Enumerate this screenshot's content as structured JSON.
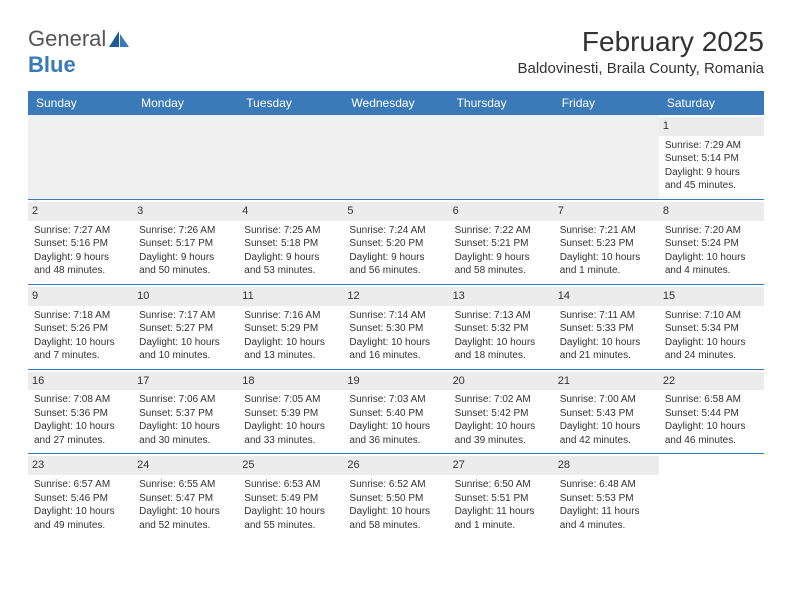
{
  "logo": {
    "text1": "General",
    "text2": "Blue",
    "icon_color": "#3b7ab8"
  },
  "title": {
    "month": "February 2025",
    "location": "Baldovinesti, Braila County, Romania"
  },
  "colors": {
    "brand": "#3b7ab8",
    "header_text": "#ffffff",
    "daybar_bg": "#ececec",
    "empty_bg": "#f0f0f0",
    "body_text": "#333333",
    "background": "#ffffff"
  },
  "typography": {
    "month_fontsize_pt": 21,
    "location_fontsize_pt": 11,
    "dow_fontsize_pt": 9,
    "cell_fontsize_pt": 7.5
  },
  "days_of_week": [
    "Sunday",
    "Monday",
    "Tuesday",
    "Wednesday",
    "Thursday",
    "Friday",
    "Saturday"
  ],
  "weeks": [
    [
      null,
      null,
      null,
      null,
      null,
      null,
      {
        "n": "1",
        "sunrise": "Sunrise: 7:29 AM",
        "sunset": "Sunset: 5:14 PM",
        "daylight1": "Daylight: 9 hours",
        "daylight2": "and 45 minutes."
      }
    ],
    [
      {
        "n": "2",
        "sunrise": "Sunrise: 7:27 AM",
        "sunset": "Sunset: 5:16 PM",
        "daylight1": "Daylight: 9 hours",
        "daylight2": "and 48 minutes."
      },
      {
        "n": "3",
        "sunrise": "Sunrise: 7:26 AM",
        "sunset": "Sunset: 5:17 PM",
        "daylight1": "Daylight: 9 hours",
        "daylight2": "and 50 minutes."
      },
      {
        "n": "4",
        "sunrise": "Sunrise: 7:25 AM",
        "sunset": "Sunset: 5:18 PM",
        "daylight1": "Daylight: 9 hours",
        "daylight2": "and 53 minutes."
      },
      {
        "n": "5",
        "sunrise": "Sunrise: 7:24 AM",
        "sunset": "Sunset: 5:20 PM",
        "daylight1": "Daylight: 9 hours",
        "daylight2": "and 56 minutes."
      },
      {
        "n": "6",
        "sunrise": "Sunrise: 7:22 AM",
        "sunset": "Sunset: 5:21 PM",
        "daylight1": "Daylight: 9 hours",
        "daylight2": "and 58 minutes."
      },
      {
        "n": "7",
        "sunrise": "Sunrise: 7:21 AM",
        "sunset": "Sunset: 5:23 PM",
        "daylight1": "Daylight: 10 hours",
        "daylight2": "and 1 minute."
      },
      {
        "n": "8",
        "sunrise": "Sunrise: 7:20 AM",
        "sunset": "Sunset: 5:24 PM",
        "daylight1": "Daylight: 10 hours",
        "daylight2": "and 4 minutes."
      }
    ],
    [
      {
        "n": "9",
        "sunrise": "Sunrise: 7:18 AM",
        "sunset": "Sunset: 5:26 PM",
        "daylight1": "Daylight: 10 hours",
        "daylight2": "and 7 minutes."
      },
      {
        "n": "10",
        "sunrise": "Sunrise: 7:17 AM",
        "sunset": "Sunset: 5:27 PM",
        "daylight1": "Daylight: 10 hours",
        "daylight2": "and 10 minutes."
      },
      {
        "n": "11",
        "sunrise": "Sunrise: 7:16 AM",
        "sunset": "Sunset: 5:29 PM",
        "daylight1": "Daylight: 10 hours",
        "daylight2": "and 13 minutes."
      },
      {
        "n": "12",
        "sunrise": "Sunrise: 7:14 AM",
        "sunset": "Sunset: 5:30 PM",
        "daylight1": "Daylight: 10 hours",
        "daylight2": "and 16 minutes."
      },
      {
        "n": "13",
        "sunrise": "Sunrise: 7:13 AM",
        "sunset": "Sunset: 5:32 PM",
        "daylight1": "Daylight: 10 hours",
        "daylight2": "and 18 minutes."
      },
      {
        "n": "14",
        "sunrise": "Sunrise: 7:11 AM",
        "sunset": "Sunset: 5:33 PM",
        "daylight1": "Daylight: 10 hours",
        "daylight2": "and 21 minutes."
      },
      {
        "n": "15",
        "sunrise": "Sunrise: 7:10 AM",
        "sunset": "Sunset: 5:34 PM",
        "daylight1": "Daylight: 10 hours",
        "daylight2": "and 24 minutes."
      }
    ],
    [
      {
        "n": "16",
        "sunrise": "Sunrise: 7:08 AM",
        "sunset": "Sunset: 5:36 PM",
        "daylight1": "Daylight: 10 hours",
        "daylight2": "and 27 minutes."
      },
      {
        "n": "17",
        "sunrise": "Sunrise: 7:06 AM",
        "sunset": "Sunset: 5:37 PM",
        "daylight1": "Daylight: 10 hours",
        "daylight2": "and 30 minutes."
      },
      {
        "n": "18",
        "sunrise": "Sunrise: 7:05 AM",
        "sunset": "Sunset: 5:39 PM",
        "daylight1": "Daylight: 10 hours",
        "daylight2": "and 33 minutes."
      },
      {
        "n": "19",
        "sunrise": "Sunrise: 7:03 AM",
        "sunset": "Sunset: 5:40 PM",
        "daylight1": "Daylight: 10 hours",
        "daylight2": "and 36 minutes."
      },
      {
        "n": "20",
        "sunrise": "Sunrise: 7:02 AM",
        "sunset": "Sunset: 5:42 PM",
        "daylight1": "Daylight: 10 hours",
        "daylight2": "and 39 minutes."
      },
      {
        "n": "21",
        "sunrise": "Sunrise: 7:00 AM",
        "sunset": "Sunset: 5:43 PM",
        "daylight1": "Daylight: 10 hours",
        "daylight2": "and 42 minutes."
      },
      {
        "n": "22",
        "sunrise": "Sunrise: 6:58 AM",
        "sunset": "Sunset: 5:44 PM",
        "daylight1": "Daylight: 10 hours",
        "daylight2": "and 46 minutes."
      }
    ],
    [
      {
        "n": "23",
        "sunrise": "Sunrise: 6:57 AM",
        "sunset": "Sunset: 5:46 PM",
        "daylight1": "Daylight: 10 hours",
        "daylight2": "and 49 minutes."
      },
      {
        "n": "24",
        "sunrise": "Sunrise: 6:55 AM",
        "sunset": "Sunset: 5:47 PM",
        "daylight1": "Daylight: 10 hours",
        "daylight2": "and 52 minutes."
      },
      {
        "n": "25",
        "sunrise": "Sunrise: 6:53 AM",
        "sunset": "Sunset: 5:49 PM",
        "daylight1": "Daylight: 10 hours",
        "daylight2": "and 55 minutes."
      },
      {
        "n": "26",
        "sunrise": "Sunrise: 6:52 AM",
        "sunset": "Sunset: 5:50 PM",
        "daylight1": "Daylight: 10 hours",
        "daylight2": "and 58 minutes."
      },
      {
        "n": "27",
        "sunrise": "Sunrise: 6:50 AM",
        "sunset": "Sunset: 5:51 PM",
        "daylight1": "Daylight: 11 hours",
        "daylight2": "and 1 minute."
      },
      {
        "n": "28",
        "sunrise": "Sunrise: 6:48 AM",
        "sunset": "Sunset: 5:53 PM",
        "daylight1": "Daylight: 11 hours",
        "daylight2": "and 4 minutes."
      },
      null
    ]
  ]
}
